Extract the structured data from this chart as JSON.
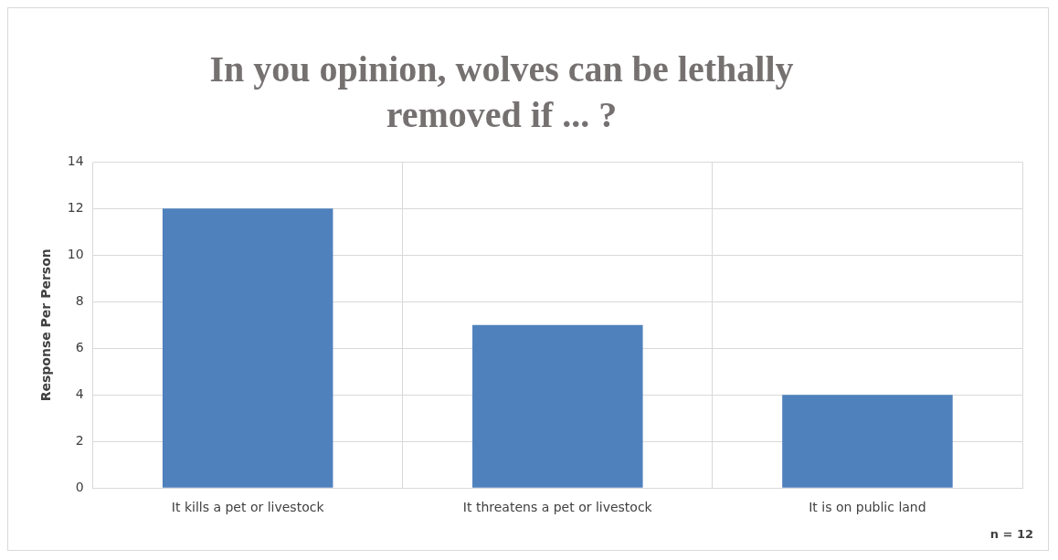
{
  "chart_data": {
    "type": "bar",
    "title": "In you opinion, wolves can be lethally removed if ... ?",
    "ylabel": "Response Per Person",
    "categories": [
      "It kills a pet or livestock",
      "It threatens a pet or livestock",
      "It is on public land"
    ],
    "values": [
      12,
      7,
      4
    ],
    "color": "#4f81bd",
    "ylim": [
      0,
      14
    ],
    "yticks": [
      0,
      2,
      4,
      6,
      8,
      10,
      12,
      14
    ],
    "grid": true,
    "annotations": [
      "n = 12"
    ]
  }
}
